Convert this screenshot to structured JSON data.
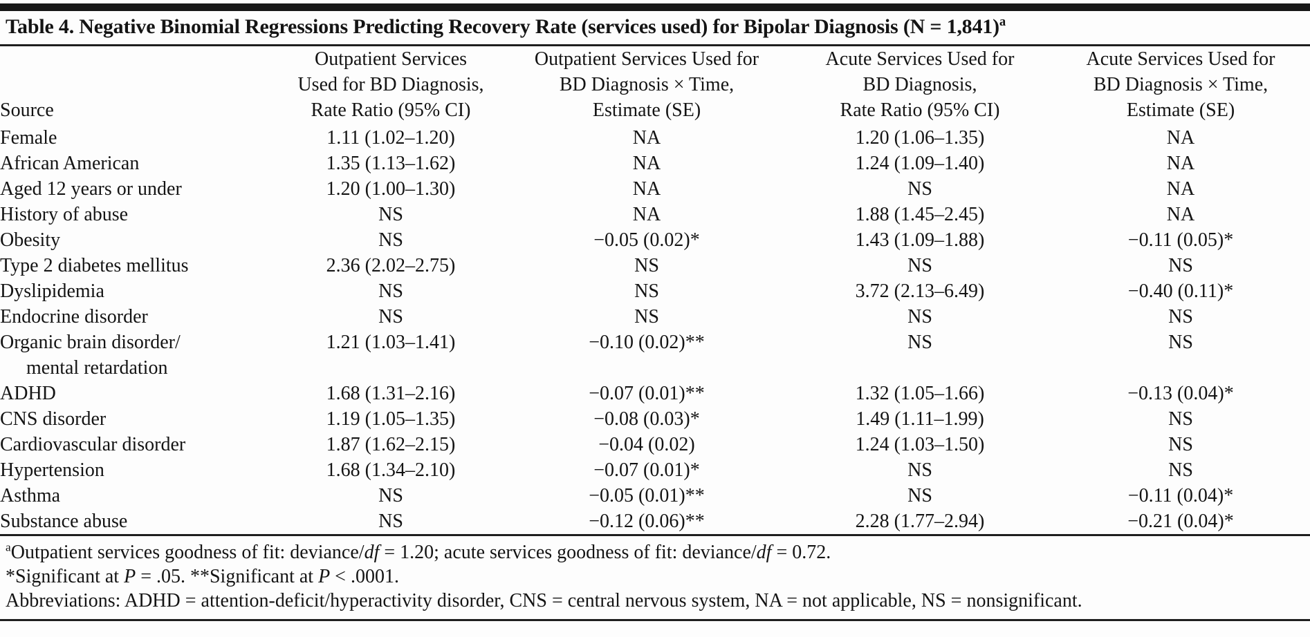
{
  "table": {
    "title": "Table 4. Negative Binomial Regressions Predicting Recovery Rate (services used) for Bipolar Diagnosis (N = 1,841)",
    "title_footnote_marker": "a",
    "header": {
      "source_label": "Source",
      "columns": [
        {
          "name": "outpatient-rate-ratio",
          "lines": [
            "Outpatient Services",
            "Used for BD Diagnosis,",
            "Rate Ratio (95% CI)"
          ]
        },
        {
          "name": "outpatient-time-estimate",
          "lines": [
            "Outpatient Services Used for",
            "BD Diagnosis × Time,",
            "Estimate (SE)"
          ]
        },
        {
          "name": "acute-rate-ratio",
          "lines": [
            "Acute Services Used for",
            "BD Diagnosis,",
            "Rate Ratio (95% CI)"
          ]
        },
        {
          "name": "acute-time-estimate",
          "lines": [
            "Acute Services Used for",
            "BD Diagnosis × Time,",
            "Estimate (SE)"
          ]
        }
      ]
    },
    "rows": [
      {
        "source": "Female",
        "values": [
          "1.11 (1.02–1.20)",
          "NA",
          "1.20 (1.06–1.35)",
          "NA"
        ]
      },
      {
        "source": "African American",
        "values": [
          "1.35 (1.13–1.62)",
          "NA",
          "1.24 (1.09–1.40)",
          "NA"
        ]
      },
      {
        "source": "Aged 12 years or under",
        "values": [
          "1.20 (1.00–1.30)",
          "NA",
          "NS",
          "NA"
        ]
      },
      {
        "source": "History of abuse",
        "values": [
          "NS",
          "NA",
          "1.88 (1.45–2.45)",
          "NA"
        ]
      },
      {
        "source": "Obesity",
        "values": [
          "NS",
          "−0.05 (0.02)*",
          "1.43 (1.09–1.88)",
          "−0.11 (0.05)*"
        ]
      },
      {
        "source": "Type 2 diabetes mellitus",
        "values": [
          "2.36 (2.02–2.75)",
          "NS",
          "NS",
          "NS"
        ]
      },
      {
        "source": "Dyslipidemia",
        "values": [
          "NS",
          "NS",
          "3.72 (2.13–6.49)",
          "−0.40 (0.11)*"
        ]
      },
      {
        "source": "Endocrine disorder",
        "values": [
          "NS",
          "NS",
          "NS",
          "NS"
        ]
      },
      {
        "source": "Organic brain disorder/",
        "source_line2": "mental retardation",
        "values": [
          "1.21 (1.03–1.41)",
          "−0.10 (0.02)**",
          "NS",
          "NS"
        ]
      },
      {
        "source": "ADHD",
        "values": [
          "1.68 (1.31–2.16)",
          "−0.07 (0.01)**",
          "1.32 (1.05–1.66)",
          "−0.13 (0.04)*"
        ]
      },
      {
        "source": "CNS disorder",
        "values": [
          "1.19 (1.05–1.35)",
          "−0.08 (0.03)*",
          "1.49 (1.11–1.99)",
          "NS"
        ]
      },
      {
        "source": "Cardiovascular disorder",
        "values": [
          "1.87 (1.62–2.15)",
          "−0.04 (0.02)",
          "1.24 (1.03–1.50)",
          "NS"
        ]
      },
      {
        "source": "Hypertension",
        "values": [
          "1.68 (1.34–2.10)",
          "−0.07 (0.01)*",
          "NS",
          "NS"
        ]
      },
      {
        "source": "Asthma",
        "values": [
          "NS",
          "−0.05 (0.01)**",
          "NS",
          "−0.11 (0.04)*"
        ]
      },
      {
        "source": "Substance abuse",
        "values": [
          "NS",
          "−0.12 (0.06)**",
          "2.28 (1.77–2.94)",
          "−0.21 (0.04)*"
        ]
      }
    ],
    "footnotes": [
      {
        "marker": "a",
        "segments": [
          {
            "t": "Outpatient services goodness of fit: deviance/"
          },
          {
            "t": "df",
            "i": true
          },
          {
            "t": " = 1.20; acute services goodness of fit: deviance/"
          },
          {
            "t": "df",
            "i": true
          },
          {
            "t": " = 0.72."
          }
        ]
      },
      {
        "segments": [
          {
            "t": "*Significant at "
          },
          {
            "t": "P",
            "i": true
          },
          {
            "t": " = .05. **Significant at "
          },
          {
            "t": "P",
            "i": true
          },
          {
            "t": " < .0001."
          }
        ]
      },
      {
        "segments": [
          {
            "t": "Abbreviations: ADHD = attention-deficit/hyperactivity disorder, CNS = central nervous system, NA = not applicable, NS = nonsignificant."
          }
        ]
      }
    ],
    "colors": {
      "text": "#141414",
      "rule": "#1e1e1e",
      "background": "#fdfdfd"
    }
  }
}
